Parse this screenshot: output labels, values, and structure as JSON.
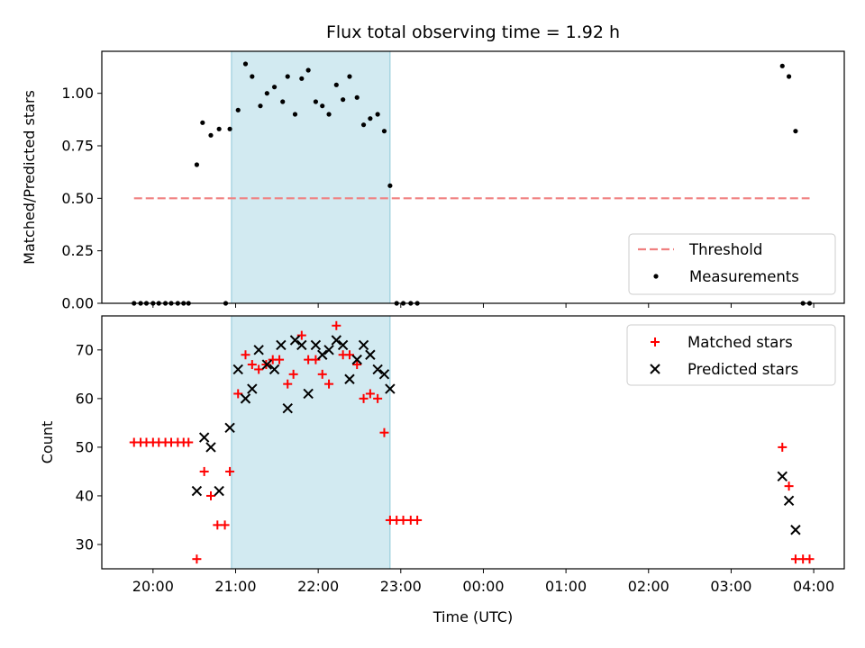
{
  "chart_data": [
    {
      "type": "scatter",
      "title": "Flux total observing time = 1.92 h",
      "xlabel": "",
      "ylabel": "Matched/Predicted stars",
      "ylim": [
        0,
        1.2
      ],
      "yticks": [
        "0.00",
        "0.25",
        "0.50",
        "0.75",
        "1.00"
      ],
      "xlim_hours": [
        19.38,
        4.37
      ],
      "shaded_interval_hours": [
        20.95,
        22.87
      ],
      "shade_color": "#add8e6",
      "threshold": {
        "name": "Threshold",
        "value": 0.5,
        "x_range_hours": [
          19.77,
          3.95
        ],
        "color": "#f08080"
      },
      "series": [
        {
          "name": "Measurements",
          "color": "#000000",
          "x": [
            19.77,
            19.85,
            19.92,
            20.0,
            20.07,
            20.15,
            20.22,
            20.3,
            20.37,
            20.43,
            20.53,
            20.6,
            20.7,
            20.8,
            20.88,
            20.93,
            21.03,
            21.12,
            21.2,
            21.3,
            21.38,
            21.47,
            21.57,
            21.63,
            21.72,
            21.8,
            21.88,
            21.97,
            22.05,
            22.13,
            22.22,
            22.3,
            22.38,
            22.47,
            22.55,
            22.63,
            22.72,
            22.8,
            22.87,
            22.95,
            23.03,
            23.12,
            23.2,
            3.62,
            3.7,
            3.78,
            3.87,
            3.95
          ],
          "y": [
            0,
            0,
            0,
            0,
            0,
            0,
            0,
            0,
            0,
            0,
            0.66,
            0.86,
            0.8,
            0.83,
            0,
            0.83,
            0.92,
            1.14,
            1.08,
            0.94,
            1.0,
            1.03,
            0.96,
            1.08,
            0.9,
            1.07,
            1.11,
            0.96,
            0.94,
            0.9,
            1.04,
            0.97,
            1.08,
            0.98,
            0.85,
            0.88,
            0.9,
            0.82,
            0.56,
            0,
            0,
            0,
            0,
            1.13,
            1.08,
            0.82,
            0,
            0
          ]
        }
      ],
      "legend": [
        "Threshold",
        "Measurements"
      ],
      "legend_position": "lower-right"
    },
    {
      "type": "scatter",
      "title": "",
      "xlabel": "Time (UTC)",
      "ylabel": "Count",
      "ylim": [
        25,
        77
      ],
      "yticks": [
        "30",
        "40",
        "50",
        "60",
        "70"
      ],
      "xticks": [
        "20:00",
        "21:00",
        "22:00",
        "23:00",
        "00:00",
        "01:00",
        "02:00",
        "03:00",
        "04:00"
      ],
      "xlim_hours": [
        19.38,
        4.37
      ],
      "shaded_interval_hours": [
        20.95,
        22.87
      ],
      "series": [
        {
          "name": "Matched stars",
          "color": "#ff0000",
          "marker": "+",
          "x": [
            19.77,
            19.85,
            19.92,
            20.0,
            20.07,
            20.15,
            20.22,
            20.3,
            20.37,
            20.43,
            20.53,
            20.62,
            20.7,
            20.78,
            20.87,
            20.93,
            21.03,
            21.12,
            21.2,
            21.28,
            21.37,
            21.45,
            21.53,
            21.63,
            21.7,
            21.8,
            21.88,
            21.97,
            22.05,
            22.13,
            22.22,
            22.3,
            22.38,
            22.47,
            22.55,
            22.63,
            22.72,
            22.8,
            22.87,
            22.95,
            23.03,
            23.12,
            23.2,
            3.62,
            3.7,
            3.78,
            3.87,
            3.95
          ],
          "y": [
            51,
            51,
            51,
            51,
            51,
            51,
            51,
            51,
            51,
            51,
            27,
            45,
            40,
            34,
            34,
            45,
            61,
            69,
            67,
            66,
            67,
            68,
            68,
            63,
            65,
            73,
            68,
            68,
            65,
            63,
            75,
            69,
            69,
            67,
            60,
            61,
            60,
            53,
            35,
            35,
            35,
            35,
            35,
            50,
            42,
            27,
            27,
            27
          ]
        },
        {
          "name": "Predicted stars",
          "color": "#000000",
          "marker": "x",
          "x": [
            20.53,
            20.62,
            20.7,
            20.8,
            20.93,
            21.03,
            21.12,
            21.2,
            21.28,
            21.38,
            21.47,
            21.55,
            21.63,
            21.72,
            21.8,
            21.88,
            21.97,
            22.05,
            22.13,
            22.22,
            22.3,
            22.38,
            22.47,
            22.55,
            22.63,
            22.72,
            22.8,
            22.87,
            3.62,
            3.7,
            3.78
          ],
          "y": [
            41,
            52,
            50,
            41,
            54,
            66,
            60,
            62,
            70,
            67,
            66,
            71,
            58,
            72,
            71,
            61,
            71,
            69,
            70,
            72,
            71,
            64,
            68,
            71,
            69,
            66,
            65,
            62,
            44,
            39,
            33
          ]
        }
      ],
      "legend": [
        "Matched stars",
        "Predicted stars"
      ],
      "legend_position": "upper-right"
    }
  ]
}
